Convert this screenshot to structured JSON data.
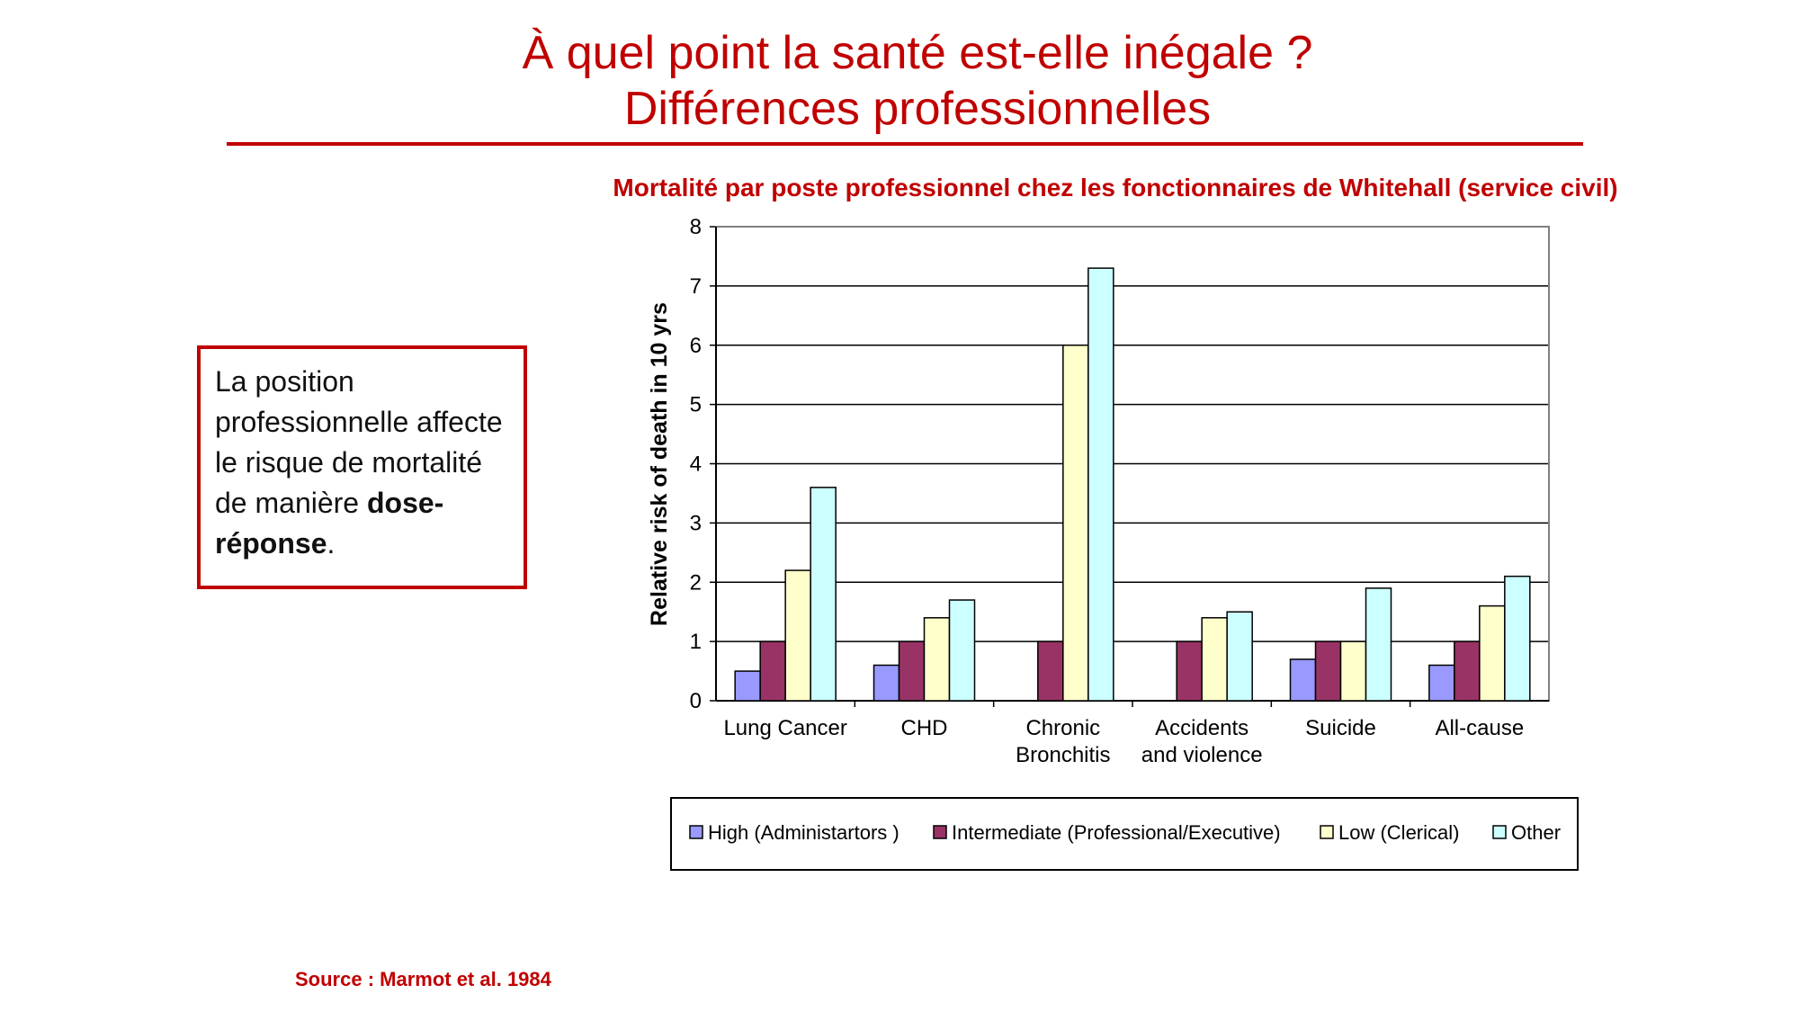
{
  "slide": {
    "title_line1": "À quel point la santé est-elle inégale ?",
    "title_line2": "Différences professionnelles",
    "callout_text": "La position professionnelle affecte le risque de mortalité de manière ",
    "callout_bold": "dose-réponse",
    "callout_end": ".",
    "source": "Source : Marmot et al. 1984",
    "accent_color": "#c00000"
  },
  "chart_data": {
    "type": "bar",
    "title": "Mortalité par poste professionnel chez les fonctionnaires de Whitehall (service civil)",
    "ylabel": "Relative risk of death in 10 yrs",
    "xlabel": "",
    "ylim": [
      0,
      8
    ],
    "yticks": [
      "0",
      "1",
      "2",
      "3",
      "4",
      "5",
      "6",
      "7",
      "8"
    ],
    "grid": true,
    "legend_position": "bottom",
    "categories": [
      [
        "Lung Cancer"
      ],
      [
        "CHD"
      ],
      [
        "Chronic",
        "Bronchitis"
      ],
      [
        "Accidents",
        "and violence"
      ],
      [
        "Suicide"
      ],
      [
        "All-cause"
      ]
    ],
    "series": [
      {
        "name": "High (Administartors )",
        "color": "#9999ff",
        "values": [
          0.5,
          0.6,
          null,
          null,
          0.7,
          0.6
        ]
      },
      {
        "name": "Intermediate (Professional/Executive)",
        "color": "#993366",
        "values": [
          1.0,
          1.0,
          1.0,
          1.0,
          1.0,
          1.0
        ]
      },
      {
        "name": "Low (Clerical)",
        "color": "#ffffcc",
        "values": [
          2.2,
          1.4,
          6.0,
          1.4,
          1.0,
          1.6
        ]
      },
      {
        "name": "Other",
        "color": "#ccffff",
        "values": [
          3.6,
          1.7,
          7.3,
          1.5,
          1.9,
          2.1
        ]
      }
    ]
  }
}
